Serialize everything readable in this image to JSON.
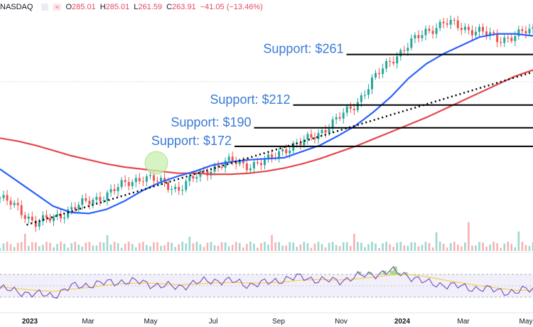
{
  "header": {
    "exchange": "NASDAQ",
    "ohlc": [
      {
        "label": "O",
        "value": "285.01"
      },
      {
        "label": "H",
        "value": "285.01"
      },
      {
        "label": "L",
        "value": "261.59"
      },
      {
        "label": "C",
        "value": "263.91"
      }
    ],
    "change": "−41.05 (−13.46%)"
  },
  "colors": {
    "up": "#26a69a",
    "down": "#ef5350",
    "ma_short": "#2962ff",
    "ma_long": "#e5484d",
    "rsi": "#7e57c2",
    "rsi_ma": "#f2d24b",
    "rsi_band": "#d8d4f0",
    "support_text": "#3b7bd6",
    "highlight": "#c9f0b0"
  },
  "chart_data": {
    "type": "line",
    "x_tick_labels": [
      "2023",
      "Mar",
      "May",
      "Jul",
      "Sep",
      "Nov",
      "2024",
      "Mar",
      "May"
    ],
    "x_tick_bold": [
      true,
      false,
      false,
      false,
      false,
      false,
      true,
      false,
      false
    ],
    "series": [
      {
        "key": "ma_short",
        "values": [
          150,
          138,
          126,
          114,
          108,
          107,
          111,
          119,
          129,
          137,
          143,
          148,
          154,
          157,
          159,
          160,
          161,
          167,
          173,
          182,
          192,
          205,
          220,
          238,
          252,
          262,
          270,
          278,
          281,
          281,
          279
        ]
      },
      {
        "key": "ma_long",
        "values": [
          180,
          177,
          173,
          168,
          163,
          159,
          155,
          152,
          150,
          148,
          146,
          146,
          145,
          145,
          146,
          148,
          151,
          155,
          160,
          166,
          172,
          179,
          186,
          193,
          200,
          208,
          216,
          224,
          232,
          240,
          246
        ]
      },
      {
        "key": "price",
        "values": [
          122,
          112,
          98,
          102,
          112,
          118,
          126,
          135,
          143,
          137,
          131,
          142,
          152,
          157,
          154,
          157,
          170,
          175,
          186,
          198,
          213,
          236,
          256,
          270,
          284,
          292,
          287,
          284,
          275,
          280,
          284
        ]
      }
    ],
    "trendline": {
      "from": [
        1.5,
        96
      ],
      "to": [
        30,
        244
      ]
    },
    "support_levels": [
      {
        "label": "Support: $261",
        "value": 261,
        "start": 19.5
      },
      {
        "label": "Support: $212",
        "value": 212,
        "start": 16.5
      },
      {
        "label": "Support: $190",
        "value": 190,
        "start": 14.3
      },
      {
        "label": "Support: $172",
        "value": 172,
        "start": 13.2
      }
    ],
    "highlight_circle_at": [
      8.8,
      156
    ],
    "y_range": [
      90,
      300
    ],
    "rsi": {
      "values": [
        45,
        40,
        35,
        33,
        48,
        52,
        55,
        58,
        56,
        50,
        48,
        55,
        60,
        58,
        52,
        55,
        62,
        65,
        60,
        58,
        66,
        70,
        76,
        68,
        55,
        52,
        48,
        45,
        42,
        38,
        46
      ],
      "ma_values": [
        48,
        45,
        42,
        40,
        44,
        47,
        51,
        54,
        55,
        54,
        52,
        53,
        55,
        56,
        55,
        55,
        57,
        60,
        61,
        60,
        62,
        65,
        69,
        70,
        66,
        60,
        55,
        50,
        46,
        42,
        42
      ],
      "band": [
        30,
        70
      ],
      "range": [
        20,
        80
      ]
    }
  }
}
